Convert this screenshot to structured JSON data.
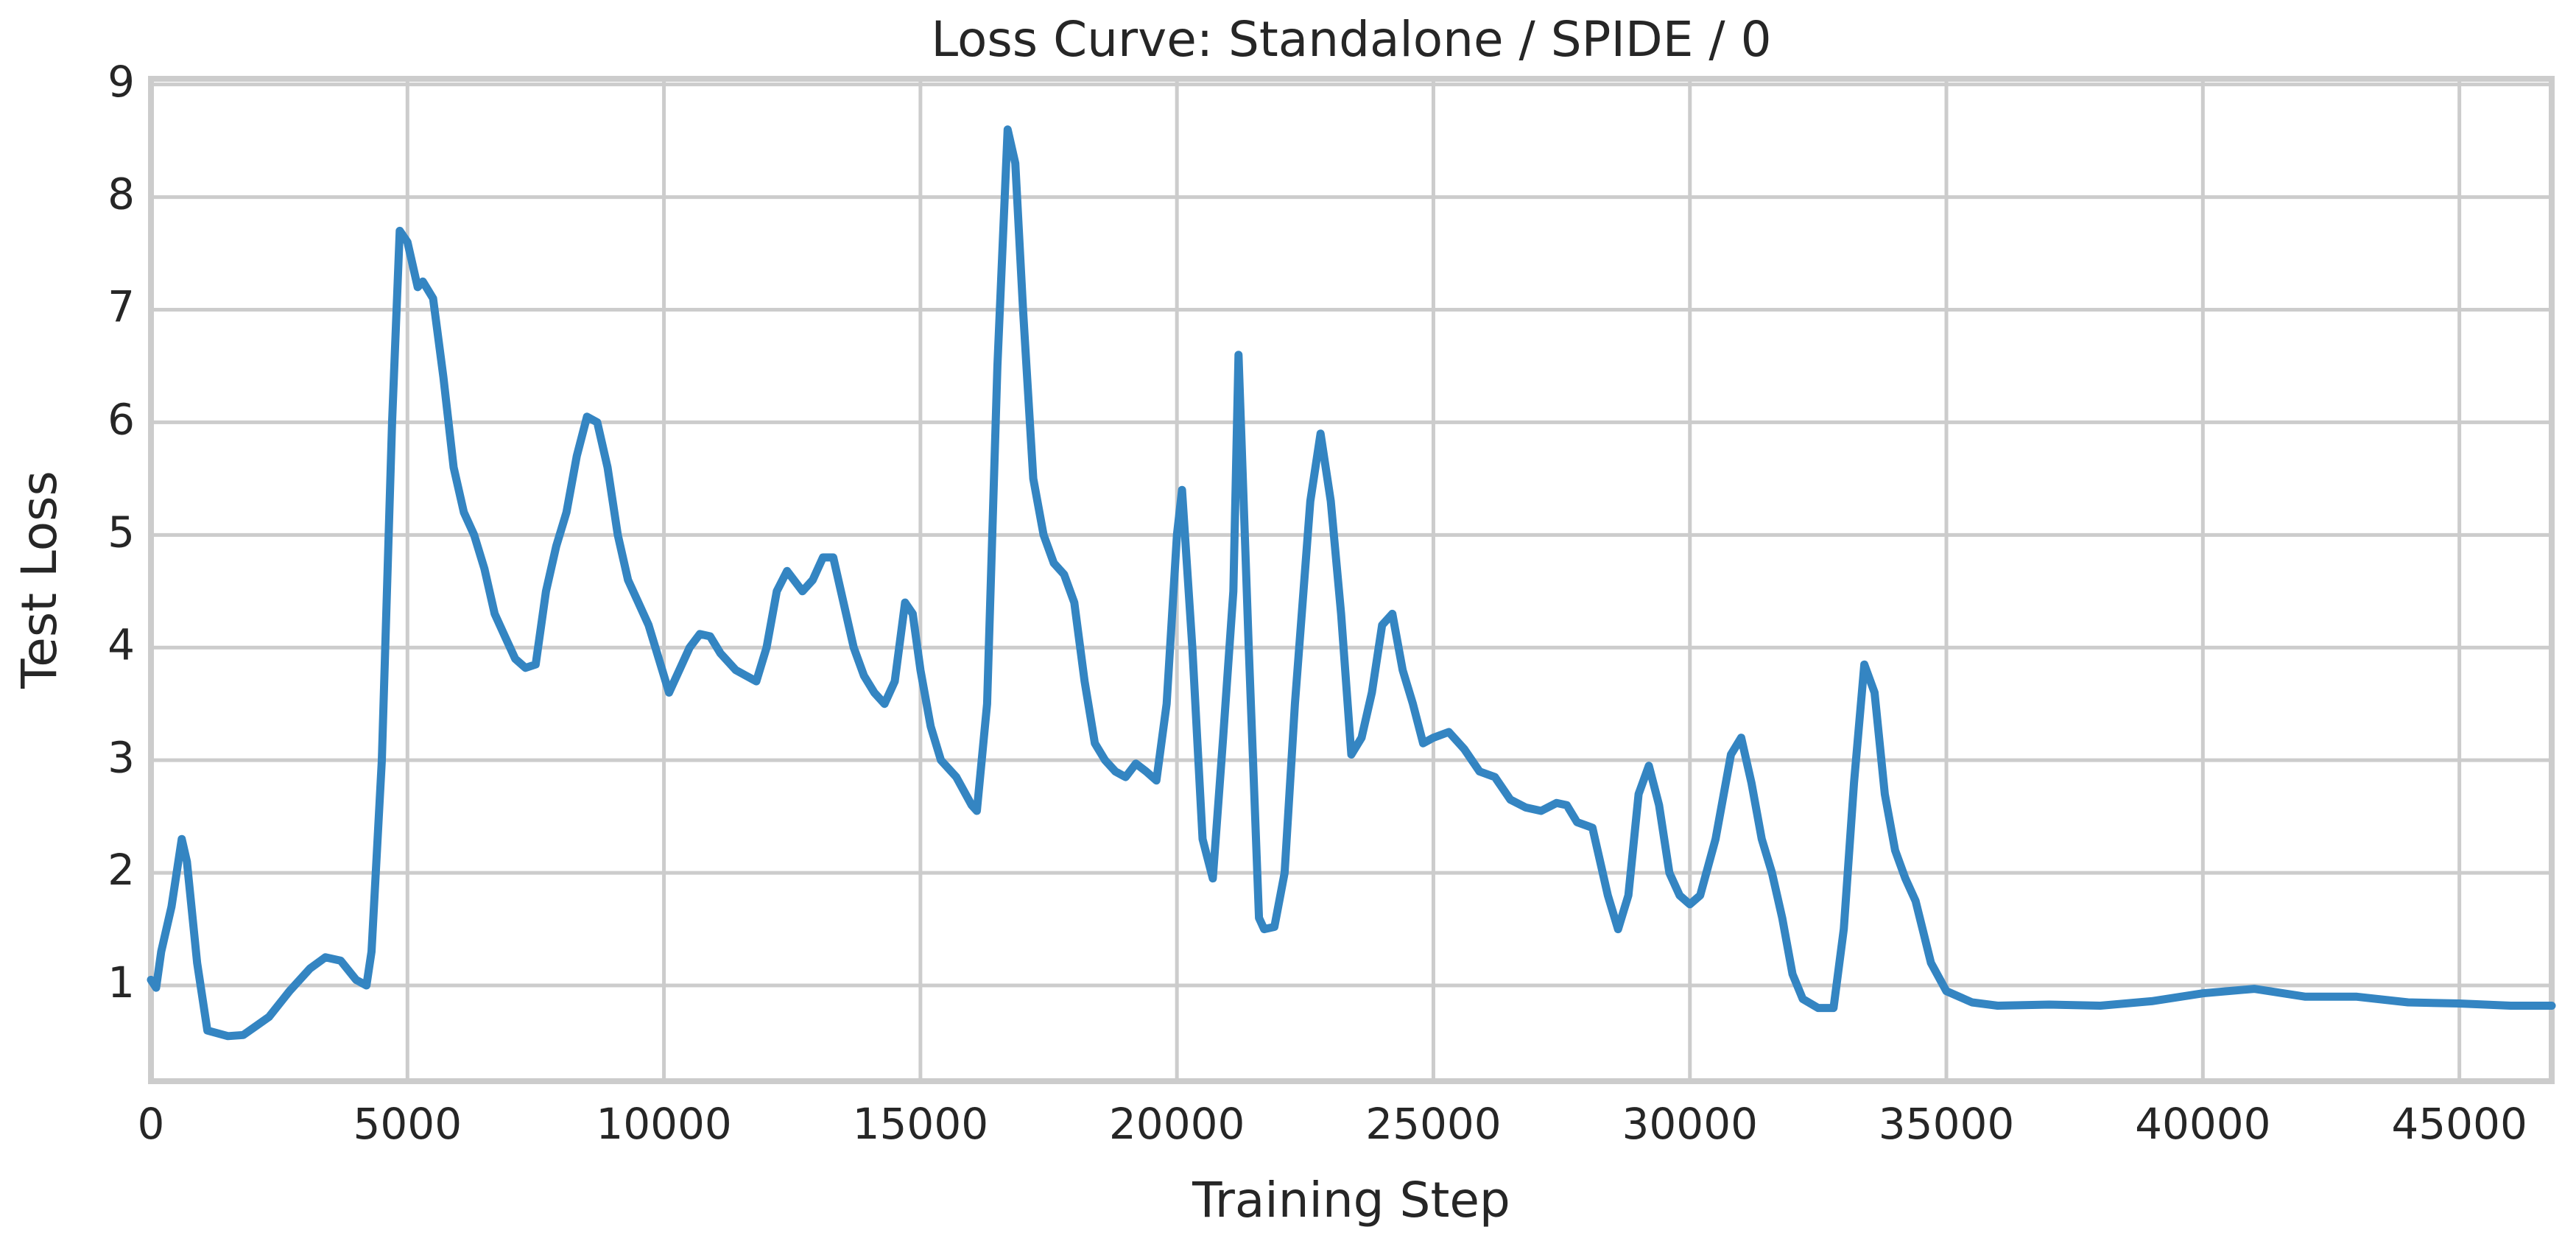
{
  "chart_data": {
    "type": "line",
    "title": "Loss Curve: Standalone / SPIDE / 0",
    "xlabel": "Training Step",
    "ylabel": "Test Loss",
    "x": [
      0,
      100,
      200,
      400,
      600,
      700,
      900,
      1100,
      1500,
      1800,
      2300,
      2700,
      3100,
      3400,
      3700,
      4000,
      4200,
      4300,
      4500,
      4700,
      4850,
      5000,
      5200,
      5300,
      5500,
      5700,
      5900,
      6100,
      6300,
      6500,
      6700,
      6900,
      7100,
      7300,
      7500,
      7700,
      7900,
      8100,
      8300,
      8500,
      8700,
      8900,
      9100,
      9300,
      9500,
      9700,
      9900,
      10100,
      10300,
      10500,
      10700,
      10900,
      11100,
      11400,
      11800,
      12000,
      12200,
      12400,
      12700,
      12900,
      13100,
      13300,
      13500,
      13700,
      13900,
      14100,
      14300,
      14500,
      14700,
      14850,
      15000,
      15200,
      15400,
      15700,
      16000,
      16100,
      16300,
      16500,
      16700,
      16850,
      17000,
      17200,
      17400,
      17600,
      17800,
      18000,
      18200,
      18400,
      18600,
      18800,
      19000,
      19200,
      19400,
      19600,
      19800,
      20000,
      20100,
      20300,
      20500,
      20700,
      20900,
      21100,
      21200,
      21400,
      21600,
      21700,
      21900,
      22100,
      22300,
      22600,
      22800,
      23000,
      23200,
      23400,
      23600,
      23800,
      24000,
      24200,
      24400,
      24600,
      24800,
      25000,
      25300,
      25600,
      25900,
      26200,
      26500,
      26800,
      27100,
      27400,
      27600,
      27800,
      28100,
      28400,
      28600,
      28800,
      29000,
      29200,
      29400,
      29600,
      29800,
      30000,
      30200,
      30500,
      30800,
      31000,
      31200,
      31400,
      31600,
      31800,
      32000,
      32200,
      32500,
      32800,
      33000,
      33200,
      33400,
      33600,
      33800,
      34000,
      34200,
      34400,
      34700,
      35000,
      35500,
      36000,
      37000,
      38000,
      39000,
      40000,
      41000,
      42000,
      43000,
      44000,
      45000,
      46000,
      46800
    ],
    "values": [
      1.05,
      0.98,
      1.3,
      1.7,
      2.3,
      2.1,
      1.2,
      0.6,
      0.55,
      0.56,
      0.72,
      0.95,
      1.15,
      1.25,
      1.22,
      1.05,
      1.0,
      1.3,
      3.0,
      6.0,
      7.7,
      7.6,
      7.2,
      7.25,
      7.1,
      6.4,
      5.6,
      5.2,
      5.0,
      4.7,
      4.3,
      4.1,
      3.9,
      3.82,
      3.85,
      4.5,
      4.9,
      5.2,
      5.7,
      6.05,
      6.0,
      5.6,
      5.0,
      4.6,
      4.4,
      4.2,
      3.9,
      3.6,
      3.8,
      4.0,
      4.12,
      4.1,
      3.95,
      3.8,
      3.7,
      4.0,
      4.5,
      4.68,
      4.5,
      4.6,
      4.8,
      4.8,
      4.4,
      4.0,
      3.75,
      3.6,
      3.5,
      3.7,
      4.4,
      4.3,
      3.8,
      3.3,
      3.0,
      2.85,
      2.6,
      2.55,
      3.5,
      6.5,
      8.6,
      8.3,
      7.0,
      5.5,
      5.0,
      4.75,
      4.65,
      4.4,
      3.7,
      3.15,
      3.0,
      2.9,
      2.85,
      2.97,
      2.9,
      2.82,
      3.5,
      5.0,
      5.4,
      4.0,
      2.3,
      1.95,
      3.2,
      4.5,
      6.6,
      4.0,
      1.6,
      1.5,
      1.52,
      2.0,
      3.5,
      5.3,
      5.9,
      5.3,
      4.3,
      3.05,
      3.2,
      3.6,
      4.2,
      4.3,
      3.8,
      3.5,
      3.15,
      3.2,
      3.25,
      3.1,
      2.9,
      2.85,
      2.65,
      2.58,
      2.55,
      2.62,
      2.6,
      2.45,
      2.4,
      1.8,
      1.5,
      1.8,
      2.7,
      2.95,
      2.6,
      2.0,
      1.8,
      1.72,
      1.8,
      2.3,
      3.05,
      3.2,
      2.8,
      2.3,
      2.0,
      1.6,
      1.1,
      0.88,
      0.8,
      0.8,
      1.5,
      2.8,
      3.85,
      3.6,
      2.7,
      2.2,
      1.95,
      1.75,
      1.2,
      0.95,
      0.85,
      0.82,
      0.83,
      0.82,
      0.86,
      0.93,
      0.97,
      0.9,
      0.9,
      0.85,
      0.84,
      0.82,
      0.82
    ],
    "color": "#3485c2",
    "xlim": [
      0,
      46800
    ],
    "xticks": [
      0,
      5000,
      10000,
      15000,
      20000,
      25000,
      30000,
      35000,
      40000,
      45000
    ],
    "ylim": [
      0.15,
      9.05
    ],
    "yticks": [
      1,
      2,
      3,
      4,
      5,
      6,
      7,
      8,
      9
    ],
    "grid": true
  }
}
